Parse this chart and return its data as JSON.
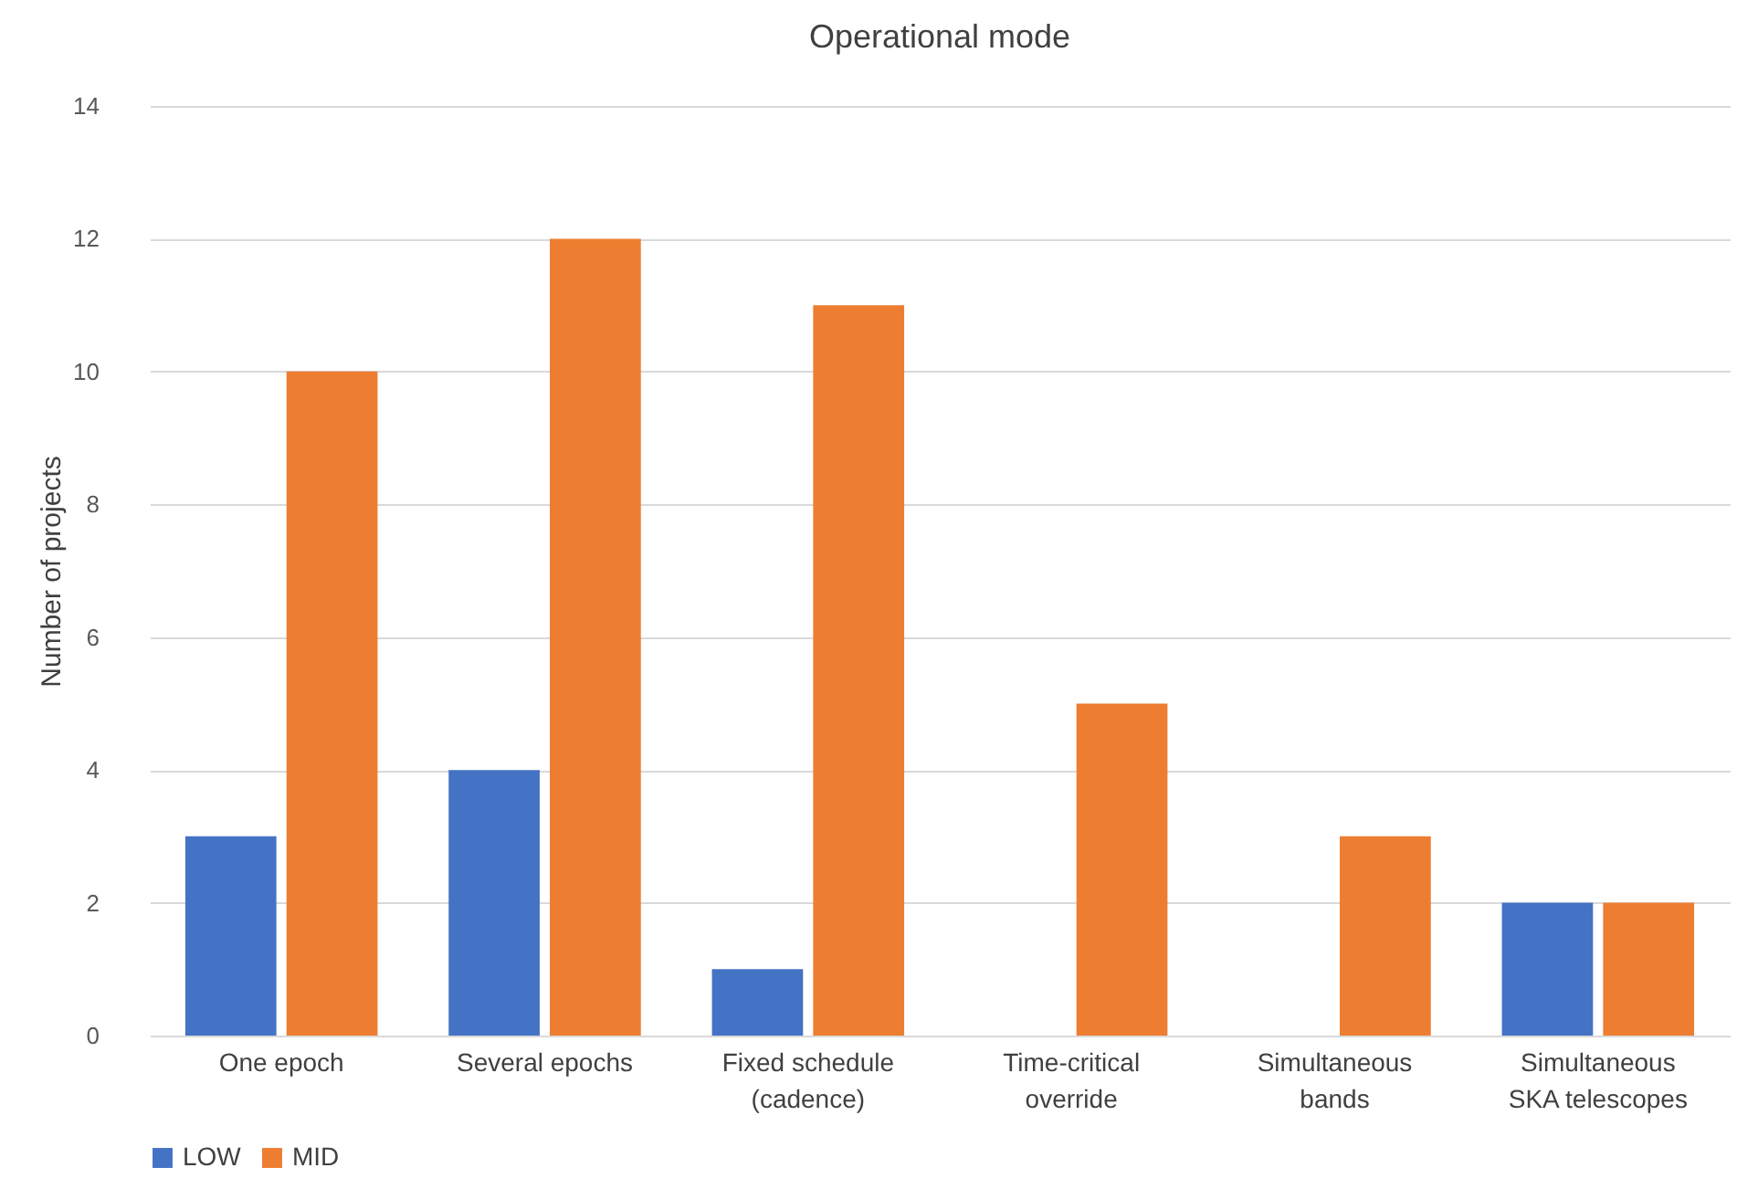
{
  "chart_data": {
    "type": "bar",
    "title": "Operational mode",
    "ylabel": "Number of projects",
    "categories": [
      "One epoch",
      "Several epochs",
      "Fixed schedule\n(cadence)",
      "Time-critical\noverride",
      "Simultaneous\nbands",
      "Simultaneous\nSKA telescopes"
    ],
    "series": [
      {
        "name": "LOW",
        "color": "#4472c4",
        "values": [
          3,
          4,
          1,
          0,
          0,
          2
        ]
      },
      {
        "name": "MID",
        "color": "#ed7d31",
        "values": [
          10,
          12,
          11,
          5,
          3,
          2
        ]
      }
    ],
    "ylim": [
      0,
      14
    ],
    "yticks": [
      0,
      2,
      4,
      6,
      8,
      10,
      12,
      14
    ],
    "grid": "y",
    "legend": "bottom"
  }
}
